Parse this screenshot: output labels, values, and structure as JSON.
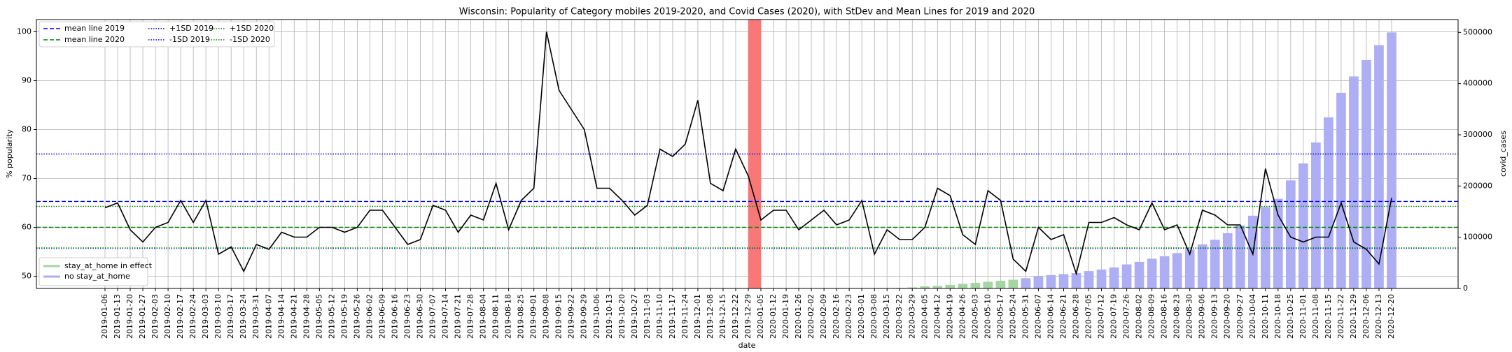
{
  "chart_data": {
    "type": "line",
    "title": "Wisconsin: Popularity of Category mobiles 2019-2020, and Covid Cases (2020), with StDev and Mean Lines for 2019 and 2020",
    "x_label": "date",
    "y_label": "% popularity",
    "y2_label": "covid_cases",
    "categories": [
      "2019-01-06",
      "2019-01-13",
      "2019-01-20",
      "2019-01-27",
      "2019-02-03",
      "2019-02-10",
      "2019-02-17",
      "2019-02-24",
      "2019-03-03",
      "2019-03-10",
      "2019-03-17",
      "2019-03-24",
      "2019-03-31",
      "2019-04-07",
      "2019-04-14",
      "2019-04-21",
      "2019-04-28",
      "2019-05-05",
      "2019-05-12",
      "2019-05-19",
      "2019-05-26",
      "2019-06-02",
      "2019-06-09",
      "2019-06-16",
      "2019-06-23",
      "2019-06-30",
      "2019-07-07",
      "2019-07-14",
      "2019-07-21",
      "2019-07-28",
      "2019-08-04",
      "2019-08-11",
      "2019-08-18",
      "2019-08-25",
      "2019-09-01",
      "2019-09-08",
      "2019-09-15",
      "2019-09-22",
      "2019-09-29",
      "2019-10-06",
      "2019-10-13",
      "2019-10-20",
      "2019-10-27",
      "2019-11-03",
      "2019-11-10",
      "2019-11-17",
      "2019-11-24",
      "2019-12-01",
      "2019-12-08",
      "2019-12-15",
      "2019-12-22",
      "2019-12-29",
      "2020-01-05",
      "2020-01-12",
      "2020-01-19",
      "2020-01-26",
      "2020-02-02",
      "2020-02-09",
      "2020-02-16",
      "2020-02-23",
      "2020-03-01",
      "2020-03-08",
      "2020-03-15",
      "2020-03-22",
      "2020-03-29",
      "2020-04-05",
      "2020-04-12",
      "2020-04-19",
      "2020-04-26",
      "2020-05-03",
      "2020-05-10",
      "2020-05-17",
      "2020-05-24",
      "2020-05-31",
      "2020-06-07",
      "2020-06-14",
      "2020-06-21",
      "2020-06-28",
      "2020-07-05",
      "2020-07-12",
      "2020-07-19",
      "2020-07-26",
      "2020-08-02",
      "2020-08-09",
      "2020-08-16",
      "2020-08-23",
      "2020-08-30",
      "2020-09-06",
      "2020-09-13",
      "2020-09-20",
      "2020-09-27",
      "2020-10-04",
      "2020-10-11",
      "2020-10-18",
      "2020-10-25",
      "2020-11-01",
      "2020-11-08",
      "2020-11-15",
      "2020-11-22",
      "2020-11-29",
      "2020-12-06",
      "2020-12-13",
      "2020-12-20"
    ],
    "series": [
      {
        "type": "line",
        "color": "#000000",
        "axis": "y",
        "values": [
          64,
          65,
          59.5,
          57,
          60,
          61,
          65.5,
          61,
          65.5,
          54.5,
          56,
          51,
          56.5,
          55.5,
          59,
          58,
          58,
          60,
          60,
          59,
          60,
          63.5,
          63.5,
          60,
          56.5,
          57.5,
          64.5,
          63.5,
          59,
          62.5,
          61.5,
          69,
          59.5,
          65.5,
          68,
          100,
          88,
          84,
          80,
          68,
          68,
          65.5,
          62.5,
          64.5,
          76,
          74.5,
          77,
          86,
          69,
          67.5,
          76,
          70.5,
          61.5,
          63.5,
          63.5,
          59.5,
          61.5,
          63.5,
          60.5,
          61.5,
          65.5,
          54.5,
          59.5,
          57.5,
          57.5,
          60,
          68,
          66.5,
          58.5,
          56.5,
          67.5,
          65.5,
          53.5,
          51,
          60,
          57.5,
          58.5,
          50.5,
          61,
          61,
          62,
          60.5,
          59.5,
          65,
          59.5,
          60.5,
          54.5,
          63.5,
          62.5,
          60.5,
          60.5,
          54.5,
          72,
          62.5,
          58,
          57,
          58,
          58,
          65,
          57,
          55.5,
          52.5,
          66
        ]
      },
      {
        "name": "stay_at_home in effect",
        "type": "bar",
        "color": "#a3d6a3",
        "axis": "y2",
        "values": [
          null,
          null,
          null,
          null,
          null,
          null,
          null,
          null,
          null,
          null,
          null,
          null,
          null,
          null,
          null,
          null,
          null,
          null,
          null,
          null,
          null,
          null,
          null,
          null,
          null,
          null,
          null,
          null,
          null,
          null,
          null,
          null,
          null,
          null,
          null,
          null,
          null,
          null,
          null,
          null,
          null,
          null,
          null,
          null,
          null,
          null,
          null,
          null,
          null,
          null,
          null,
          null,
          null,
          null,
          null,
          null,
          null,
          null,
          null,
          null,
          null,
          null,
          null,
          1000,
          2000,
          4000,
          5000,
          7000,
          9000,
          11000,
          13000,
          15000,
          17000,
          null,
          null,
          null,
          null,
          null,
          null,
          null,
          null,
          null,
          null,
          null,
          null,
          null,
          null,
          null,
          null,
          null,
          null,
          null,
          null,
          null,
          null,
          null,
          null,
          null,
          null,
          null,
          null,
          null,
          null
        ]
      },
      {
        "name": "no stay_at_home",
        "type": "bar",
        "color": "#aeaef5",
        "axis": "y2",
        "values": [
          null,
          null,
          null,
          null,
          null,
          null,
          null,
          null,
          null,
          null,
          null,
          null,
          null,
          null,
          null,
          null,
          null,
          null,
          null,
          null,
          null,
          null,
          null,
          null,
          null,
          null,
          null,
          null,
          null,
          null,
          null,
          null,
          null,
          null,
          null,
          null,
          null,
          null,
          null,
          null,
          null,
          null,
          null,
          null,
          null,
          null,
          null,
          null,
          null,
          null,
          null,
          null,
          null,
          null,
          null,
          null,
          null,
          null,
          null,
          null,
          null,
          null,
          null,
          null,
          null,
          null,
          null,
          null,
          null,
          null,
          null,
          null,
          null,
          20000,
          24000,
          26000,
          28000,
          30000,
          34000,
          37000,
          41000,
          47000,
          52000,
          58000,
          63000,
          69000,
          76000,
          86000,
          95000,
          108000,
          123000,
          142000,
          159000,
          175000,
          211000,
          244000,
          285000,
          334000,
          382000,
          414000,
          446000,
          475000,
          500000
        ]
      }
    ],
    "hlines": [
      {
        "name": "mean line 2019",
        "value": 65.3,
        "color": "#0000ff",
        "style": "dashed"
      },
      {
        "name": "mean line 2020",
        "value": 60,
        "color": "#008000",
        "style": "dashed"
      },
      {
        "name": "+1SD 2019",
        "value": 75,
        "color": "#0000ff",
        "style": "dotted"
      },
      {
        "name": "-1SD 2019",
        "value": 55.7,
        "color": "#0000ff",
        "style": "dotted"
      },
      {
        "name": "+1SD 2020",
        "value": 64.3,
        "color": "#008000",
        "style": "dotted"
      },
      {
        "name": "-1SD 2020",
        "value": 55.8,
        "color": "#008000",
        "style": "dotted"
      }
    ],
    "highlight": {
      "from": "2019-12-29",
      "to": "2020-01-05",
      "color": "#f87878"
    },
    "ylim": [
      47.5,
      102.5
    ],
    "yticks": [
      50,
      60,
      70,
      80,
      90,
      100
    ],
    "y2lim": [
      0,
      525000
    ],
    "y2ticks": [
      0,
      100000,
      200000,
      300000,
      400000,
      500000
    ],
    "grid": true,
    "legend": "upper left",
    "bar_legend": "lower left"
  }
}
